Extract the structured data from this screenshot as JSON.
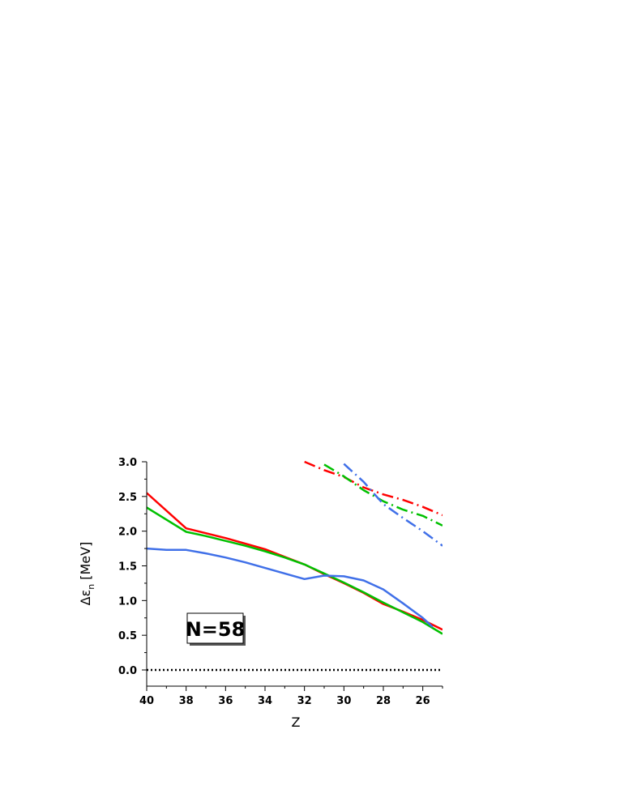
{
  "chart_data": {
    "type": "line",
    "xlabel": "Z",
    "ylabel": "Δε",
    "ylabel_sub": "n",
    "ylabel_unit": "[MeV]",
    "xlim": [
      40,
      25
    ],
    "ylim": [
      -0.25,
      3.0
    ],
    "x_reversed": true,
    "x_ticks": [
      40,
      38,
      36,
      34,
      32,
      30,
      28,
      26
    ],
    "x_tick_labels": [
      "40",
      "38",
      "36",
      "34",
      "32",
      "30",
      "28",
      "26"
    ],
    "y_ticks": [
      0.0,
      0.5,
      1.0,
      1.5,
      2.0,
      2.5,
      3.0
    ],
    "y_tick_labels": [
      "0.0",
      "0.5",
      "1.0",
      "1.5",
      "2.0",
      "2.5",
      "3.0"
    ],
    "grid": false,
    "legend": "none",
    "annotation": "N=58",
    "series": [
      {
        "color": "#ff0000",
        "style": "solid",
        "x": [
          40,
          38,
          37,
          36,
          35,
          34,
          33,
          32,
          31,
          30,
          29,
          28,
          27,
          26,
          25
        ],
        "y": [
          2.55,
          2.04,
          1.97,
          1.9,
          1.82,
          1.74,
          1.63,
          1.52,
          1.38,
          1.25,
          1.11,
          0.95,
          0.84,
          0.72,
          0.58
        ]
      },
      {
        "color": "#00c000",
        "style": "solid",
        "x": [
          40,
          38,
          37,
          36,
          35,
          34,
          33,
          32,
          31,
          30,
          29,
          28,
          27,
          26,
          25
        ],
        "y": [
          2.34,
          1.99,
          1.93,
          1.86,
          1.79,
          1.71,
          1.62,
          1.52,
          1.39,
          1.26,
          1.12,
          0.97,
          0.83,
          0.69,
          0.52
        ]
      },
      {
        "color": "#4070e8",
        "style": "solid",
        "x": [
          40,
          39,
          38,
          37,
          36,
          35,
          34,
          33,
          32,
          31,
          30,
          29,
          28,
          27,
          26,
          25.5
        ],
        "y": [
          1.75,
          1.73,
          1.73,
          1.68,
          1.62,
          1.55,
          1.47,
          1.39,
          1.31,
          1.36,
          1.35,
          1.29,
          1.16,
          0.96,
          0.75,
          0.62
        ]
      },
      {
        "color": "#ff0000",
        "style": "dashdot",
        "x": [
          32,
          31,
          30,
          29,
          28,
          27,
          26,
          25
        ],
        "y": [
          3.0,
          2.88,
          2.78,
          2.63,
          2.53,
          2.45,
          2.35,
          2.23
        ]
      },
      {
        "color": "#00c000",
        "style": "dashdot",
        "x": [
          31,
          30,
          29,
          28,
          27,
          26,
          25
        ],
        "y": [
          2.96,
          2.79,
          2.59,
          2.43,
          2.31,
          2.22,
          2.08
        ]
      },
      {
        "color": "#4070e8",
        "style": "dashdot",
        "x": [
          30,
          29,
          28,
          27,
          26,
          25
        ],
        "y": [
          2.97,
          2.71,
          2.39,
          2.19,
          2.0,
          1.79
        ]
      },
      {
        "color": "#000000",
        "style": "dotted",
        "x": [
          40,
          25
        ],
        "y": [
          0.0,
          0.0
        ]
      }
    ]
  }
}
